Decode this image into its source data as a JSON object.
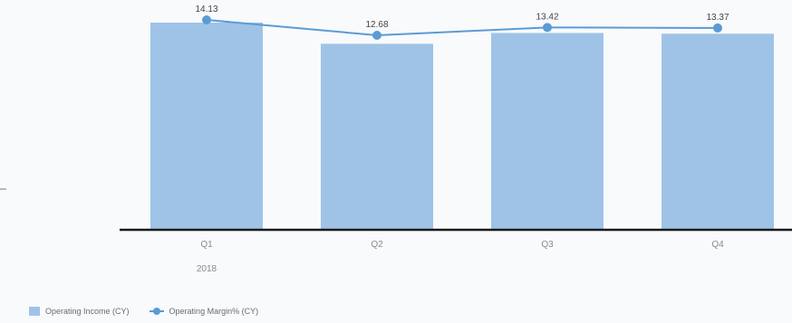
{
  "chart_data": {
    "type": "bar",
    "categories": [
      "Q1",
      "Q2",
      "Q3",
      "Q4"
    ],
    "year_label": "2018",
    "series": [
      {
        "name": "Operating Income (CY)",
        "kind": "bar",
        "color": "#9fc3e7",
        "values": [
          14.13,
          12.68,
          13.42,
          13.37
        ]
      },
      {
        "name": "Operating Margin% (CY)",
        "kind": "line",
        "color": "#5b9bd5",
        "values": [
          14.13,
          12.68,
          13.42,
          13.37
        ],
        "data_labels": [
          "14.13",
          "12.68",
          "13.42",
          "13.37"
        ]
      }
    ],
    "legend_position": "bottom-left",
    "grid": false
  }
}
